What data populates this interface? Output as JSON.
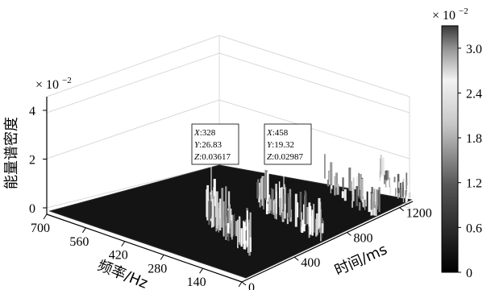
{
  "chart_data": {
    "type": "surface",
    "xlabel": "频率/Hz",
    "ylabel": "时间/ms",
    "zlabel": "能量谱密度",
    "x_ticks": [
      700,
      560,
      420,
      280,
      140,
      0
    ],
    "y_ticks": [
      0,
      400,
      800,
      1200
    ],
    "z_ticks": [
      0,
      2,
      4
    ],
    "z_exponent_label": "× 10",
    "z_exponent_power": "−2",
    "xlim": [
      0,
      700
    ],
    "ylim": [
      0,
      1300
    ],
    "zlim": [
      0,
      0.045
    ],
    "colorbar": {
      "ticks": [
        "3.0",
        "2.4",
        "1.8",
        "1.2",
        "0.6",
        "0"
      ],
      "range": [
        0,
        3.3
      ],
      "exponent_label": "× 10",
      "exponent_power": "−2",
      "colormap": "gray"
    },
    "datatips": [
      {
        "x_label": "X",
        "x": "328",
        "y_label": "Y",
        "y": "26.83",
        "z_label": "Z",
        "z": "0.03617"
      },
      {
        "x_label": "X",
        "x": "458",
        "y_label": "Y",
        "y": "19.32",
        "z_label": "Z",
        "z": "0.02987"
      }
    ]
  }
}
